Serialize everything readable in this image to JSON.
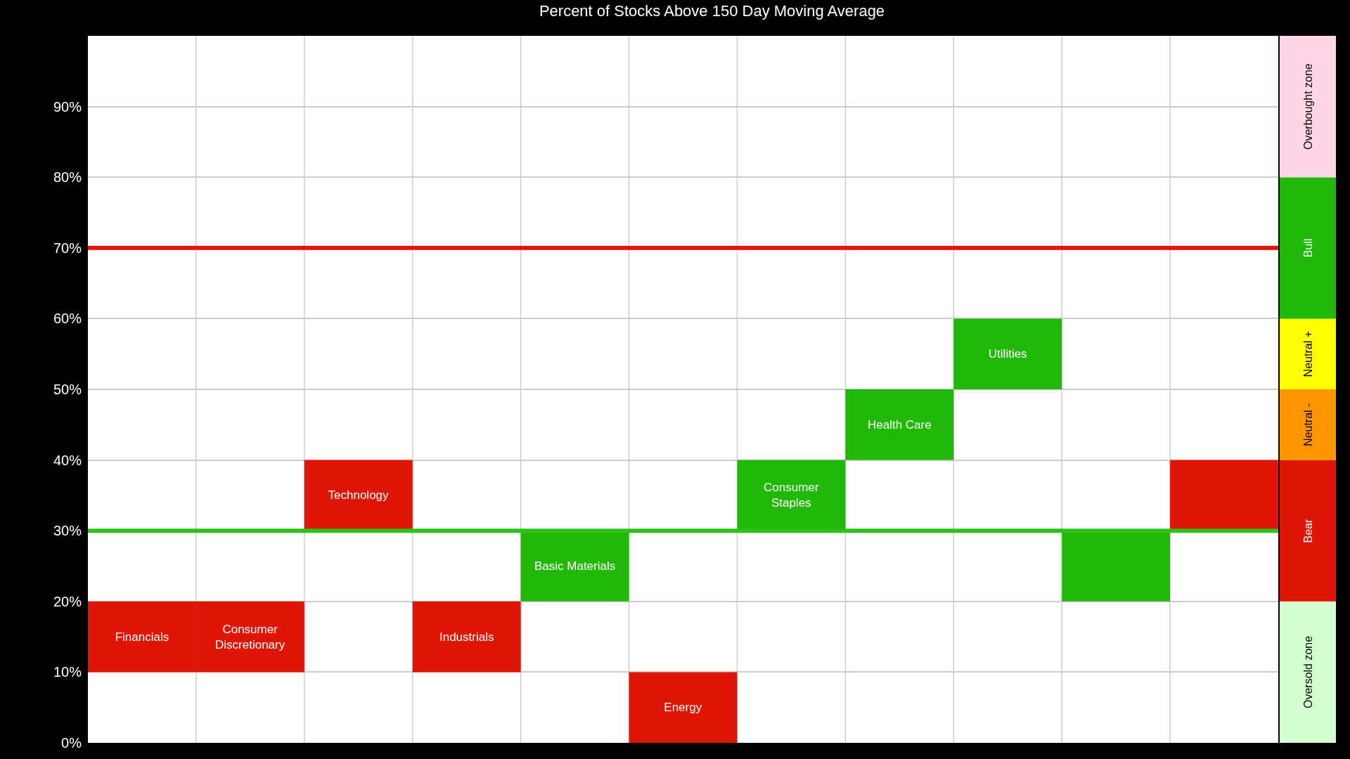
{
  "chart_data": [
    {
      "type": "bar",
      "title": "Percent of Stocks Above 150 Day Moving Average",
      "categories": [
        null,
        null,
        null,
        null,
        null,
        null,
        null,
        null,
        null,
        null,
        null
      ],
      "base": [
        10,
        10,
        30,
        10,
        20,
        0,
        30,
        40,
        50,
        20,
        30
      ],
      "values": [
        10,
        10,
        10,
        10,
        10,
        10,
        10,
        10,
        10,
        10,
        10
      ],
      "colors": [
        "#df1508",
        "#df1508",
        "#df1508",
        "#df1508",
        "#22b80a",
        "#df1508",
        "#22b80a",
        "#22b80a",
        "#22b80a",
        "#22b80a",
        "#df1508"
      ],
      "value_labels": [
        "Financials",
        "Consumer Discretionary",
        "Technology",
        "Industrials",
        "Basic Materials",
        "Energy",
        "Consumer Staples",
        "Health Care",
        "Utilities",
        null,
        null
      ],
      "ylim": [
        0,
        100
      ],
      "yticks": [
        {
          "value": 0,
          "label": "0%"
        },
        {
          "value": 10,
          "label": "10%"
        },
        {
          "value": 20,
          "label": "20%"
        },
        {
          "value": 30,
          "label": "30%"
        },
        {
          "value": 40,
          "label": "40%"
        },
        {
          "value": 50,
          "label": "50%"
        },
        {
          "value": 60,
          "label": "60%"
        },
        {
          "value": 70,
          "label": "70%"
        },
        {
          "value": 80,
          "label": "80%"
        },
        {
          "value": 90,
          "label": "90%"
        }
      ],
      "ref_lines": [
        {
          "axis": "y",
          "value": 70,
          "color": "#e3140c"
        },
        {
          "axis": "y",
          "value": 30,
          "color": "#2cc21a"
        }
      ],
      "grid": true,
      "tick_labels": "y"
    },
    {
      "type": "bar",
      "stacked": true,
      "categories": [
        null
      ],
      "ylim": [
        0,
        100
      ],
      "tick_labels": false,
      "series": [
        {
          "name": "Oversold zone",
          "color": "#d4ffd0",
          "values": [
            20
          ]
        },
        {
          "name": "Bear",
          "color": "#df1508",
          "values": [
            20
          ]
        },
        {
          "name": "Neutral -",
          "color": "#ff9500",
          "values": [
            10
          ]
        },
        {
          "name": "Neutral +",
          "color": "#ffff00",
          "values": [
            10
          ]
        },
        {
          "name": "Bull",
          "color": "#22b80a",
          "values": [
            20
          ]
        },
        {
          "name": "Overbought zone",
          "color": "#ffd6e6",
          "values": [
            20
          ]
        }
      ]
    }
  ]
}
